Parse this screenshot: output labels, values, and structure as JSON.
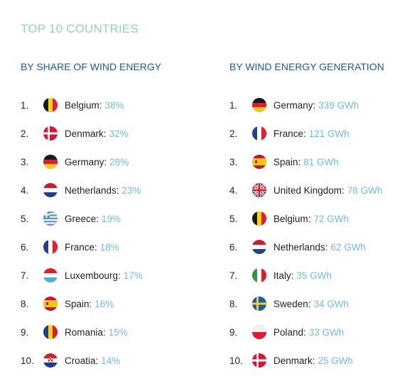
{
  "title": "TOP 10 COUNTRIES",
  "colors": {
    "title": "#8fd9a8",
    "heading": "#1f5a8e",
    "value": "#75b8d8",
    "text": "#222222"
  },
  "share": {
    "heading": "BY SHARE OF WIND ENERGY",
    "items": [
      {
        "rank": "1.",
        "country": "Belgium:",
        "value": "38%",
        "flag": "belgium-flag-icon"
      },
      {
        "rank": "2.",
        "country": "Denmark:",
        "value": "32%",
        "flag": "denmark-flag-icon"
      },
      {
        "rank": "3.",
        "country": "Germany:",
        "value": "28%",
        "flag": "germany-flag-icon"
      },
      {
        "rank": "4.",
        "country": "Netherlands:",
        "value": "23%",
        "flag": "netherlands-flag-icon"
      },
      {
        "rank": "5.",
        "country": "Greece:",
        "value": "19%",
        "flag": "greece-flag-icon"
      },
      {
        "rank": "6.",
        "country": "France:",
        "value": "18%",
        "flag": "france-flag-icon"
      },
      {
        "rank": "7.",
        "country": "Luxembourg:",
        "value": "17%",
        "flag": "luxembourg-flag-icon"
      },
      {
        "rank": "8.",
        "country": "Spain:",
        "value": "16%",
        "flag": "spain-flag-icon"
      },
      {
        "rank": "9.",
        "country": "Romania:",
        "value": "15%",
        "flag": "romania-flag-icon"
      },
      {
        "rank": "10.",
        "country": "Croatia:",
        "value": "14%",
        "flag": "croatia-flag-icon"
      }
    ]
  },
  "generation": {
    "heading": "BY WIND ENERGY GENERATION",
    "items": [
      {
        "rank": "1.",
        "country": "Germany:",
        "value": "339 GWh",
        "flag": "germany-flag-icon"
      },
      {
        "rank": "2.",
        "country": "France:",
        "value": "121 GWh",
        "flag": "france-flag-icon"
      },
      {
        "rank": "3.",
        "country": "Spain:",
        "value": "81 GWh",
        "flag": "spain-flag-icon"
      },
      {
        "rank": "4.",
        "country": "United Kingdom:",
        "value": "78 GWh",
        "flag": "united-kingdom-flag-icon"
      },
      {
        "rank": "5.",
        "country": "Belgium:",
        "value": "72 GWh",
        "flag": "belgium-flag-icon"
      },
      {
        "rank": "6.",
        "country": "Netherlands:",
        "value": "62 GWh",
        "flag": "netherlands-flag-icon"
      },
      {
        "rank": "7.",
        "country": "Italy:",
        "value": "35 GWh",
        "flag": "italy-flag-icon"
      },
      {
        "rank": "8.",
        "country": "Sweden:",
        "value": "34 GWh",
        "flag": "sweden-flag-icon"
      },
      {
        "rank": "9.",
        "country": "Poland:",
        "value": "33 GWh",
        "flag": "poland-flag-icon"
      },
      {
        "rank": "10.",
        "country": "Denmark:",
        "value": "25 GWh",
        "flag": "denmark-flag-icon"
      }
    ]
  }
}
